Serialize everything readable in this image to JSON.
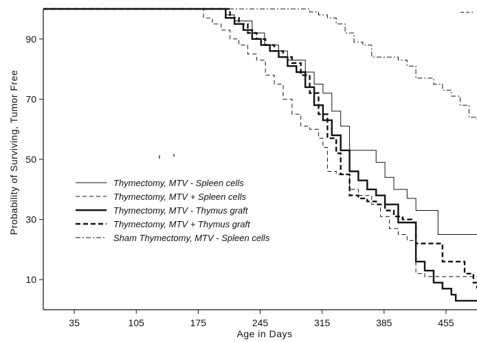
{
  "chart_data": {
    "type": "line",
    "title": "",
    "xlabel": "Age in Days",
    "ylabel": "Probability of Surviving, Tumor Free",
    "xlim": [
      0,
      490
    ],
    "ylim": [
      0,
      100
    ],
    "x_ticks": [
      35,
      105,
      175,
      245,
      315,
      385,
      455
    ],
    "y_ticks": [
      10,
      30,
      50,
      70,
      90
    ],
    "grid": false,
    "legend_position": "left-center",
    "series": [
      {
        "name": "Thymectomy, MTV - Spleen cells",
        "style": "thin-solid",
        "points": [
          [
            0,
            100
          ],
          [
            180,
            100
          ],
          [
            196,
            100
          ],
          [
            206,
            98
          ],
          [
            216,
            96
          ],
          [
            236,
            92
          ],
          [
            250,
            88
          ],
          [
            266,
            86
          ],
          [
            276,
            83
          ],
          [
            286,
            83
          ],
          [
            296,
            79
          ],
          [
            306,
            75
          ],
          [
            316,
            72
          ],
          [
            326,
            66
          ],
          [
            336,
            61
          ],
          [
            346,
            53
          ],
          [
            366,
            53
          ],
          [
            376,
            49
          ],
          [
            386,
            44
          ],
          [
            396,
            40
          ],
          [
            411,
            37
          ],
          [
            421,
            33
          ],
          [
            431,
            33
          ],
          [
            446,
            25
          ],
          [
            490,
            25
          ]
        ]
      },
      {
        "name": "Thymectomy, MTV + Spleen cells",
        "style": "thin-dashed",
        "points": [
          [
            0,
            100
          ],
          [
            176,
            100
          ],
          [
            181,
            97
          ],
          [
            191,
            95
          ],
          [
            201,
            93
          ],
          [
            211,
            90
          ],
          [
            221,
            88
          ],
          [
            231,
            85
          ],
          [
            241,
            83
          ],
          [
            251,
            78
          ],
          [
            261,
            75
          ],
          [
            271,
            70
          ],
          [
            281,
            65
          ],
          [
            291,
            61
          ],
          [
            301,
            60
          ],
          [
            311,
            57
          ],
          [
            316,
            54
          ],
          [
            321,
            46
          ],
          [
            331,
            45
          ],
          [
            346,
            40
          ],
          [
            356,
            38
          ],
          [
            371,
            35
          ],
          [
            381,
            31
          ],
          [
            391,
            27
          ],
          [
            401,
            25
          ],
          [
            411,
            23
          ],
          [
            421,
            12
          ],
          [
            431,
            11
          ],
          [
            490,
            11
          ]
        ]
      },
      {
        "name": "Thymectomy, MTV - Thymus graft",
        "style": "thick-solid",
        "points": [
          [
            0,
            100
          ],
          [
            198,
            100
          ],
          [
            206,
            97
          ],
          [
            216,
            95
          ],
          [
            226,
            93
          ],
          [
            236,
            90
          ],
          [
            246,
            88
          ],
          [
            256,
            86
          ],
          [
            266,
            84
          ],
          [
            276,
            81
          ],
          [
            286,
            79
          ],
          [
            296,
            74
          ],
          [
            306,
            68
          ],
          [
            316,
            63
          ],
          [
            326,
            58
          ],
          [
            336,
            53
          ],
          [
            346,
            46
          ],
          [
            356,
            43
          ],
          [
            366,
            40
          ],
          [
            376,
            38
          ],
          [
            386,
            35
          ],
          [
            396,
            35
          ],
          [
            401,
            29
          ],
          [
            411,
            29
          ],
          [
            421,
            16
          ],
          [
            431,
            13
          ],
          [
            441,
            9
          ],
          [
            451,
            7
          ],
          [
            461,
            5
          ],
          [
            466,
            3
          ],
          [
            490,
            3
          ]
        ]
      },
      {
        "name": "Thymectomy, MTV + Thymus graft",
        "style": "thick-dashed",
        "points": [
          [
            0,
            100
          ],
          [
            201,
            100
          ],
          [
            211,
            97
          ],
          [
            221,
            95
          ],
          [
            231,
            92
          ],
          [
            241,
            90
          ],
          [
            251,
            88
          ],
          [
            261,
            86
          ],
          [
            271,
            84
          ],
          [
            281,
            82
          ],
          [
            291,
            78
          ],
          [
            301,
            72
          ],
          [
            311,
            65
          ],
          [
            321,
            57
          ],
          [
            331,
            52
          ],
          [
            336,
            45
          ],
          [
            346,
            38
          ],
          [
            356,
            37
          ],
          [
            366,
            36
          ],
          [
            376,
            35
          ],
          [
            386,
            33
          ],
          [
            396,
            31
          ],
          [
            406,
            30
          ],
          [
            416,
            29
          ],
          [
            421,
            22
          ],
          [
            441,
            22
          ],
          [
            451,
            16
          ],
          [
            466,
            16
          ],
          [
            476,
            12
          ],
          [
            486,
            9
          ],
          [
            490,
            7
          ]
        ]
      },
      {
        "name": "Sham Thymectomy, MTV - Spleen cells",
        "style": "dash-dot",
        "points": [
          [
            0,
            100
          ],
          [
            291,
            100
          ],
          [
            301,
            99
          ],
          [
            311,
            98
          ],
          [
            321,
            97
          ],
          [
            331,
            95
          ],
          [
            341,
            92
          ],
          [
            351,
            89
          ],
          [
            361,
            88
          ],
          [
            371,
            84
          ],
          [
            391,
            84
          ],
          [
            401,
            83
          ],
          [
            411,
            81
          ],
          [
            421,
            77
          ],
          [
            441,
            75
          ],
          [
            451,
            73
          ],
          [
            461,
            71
          ],
          [
            471,
            68
          ],
          [
            481,
            64
          ],
          [
            490,
            63
          ]
        ]
      }
    ]
  }
}
